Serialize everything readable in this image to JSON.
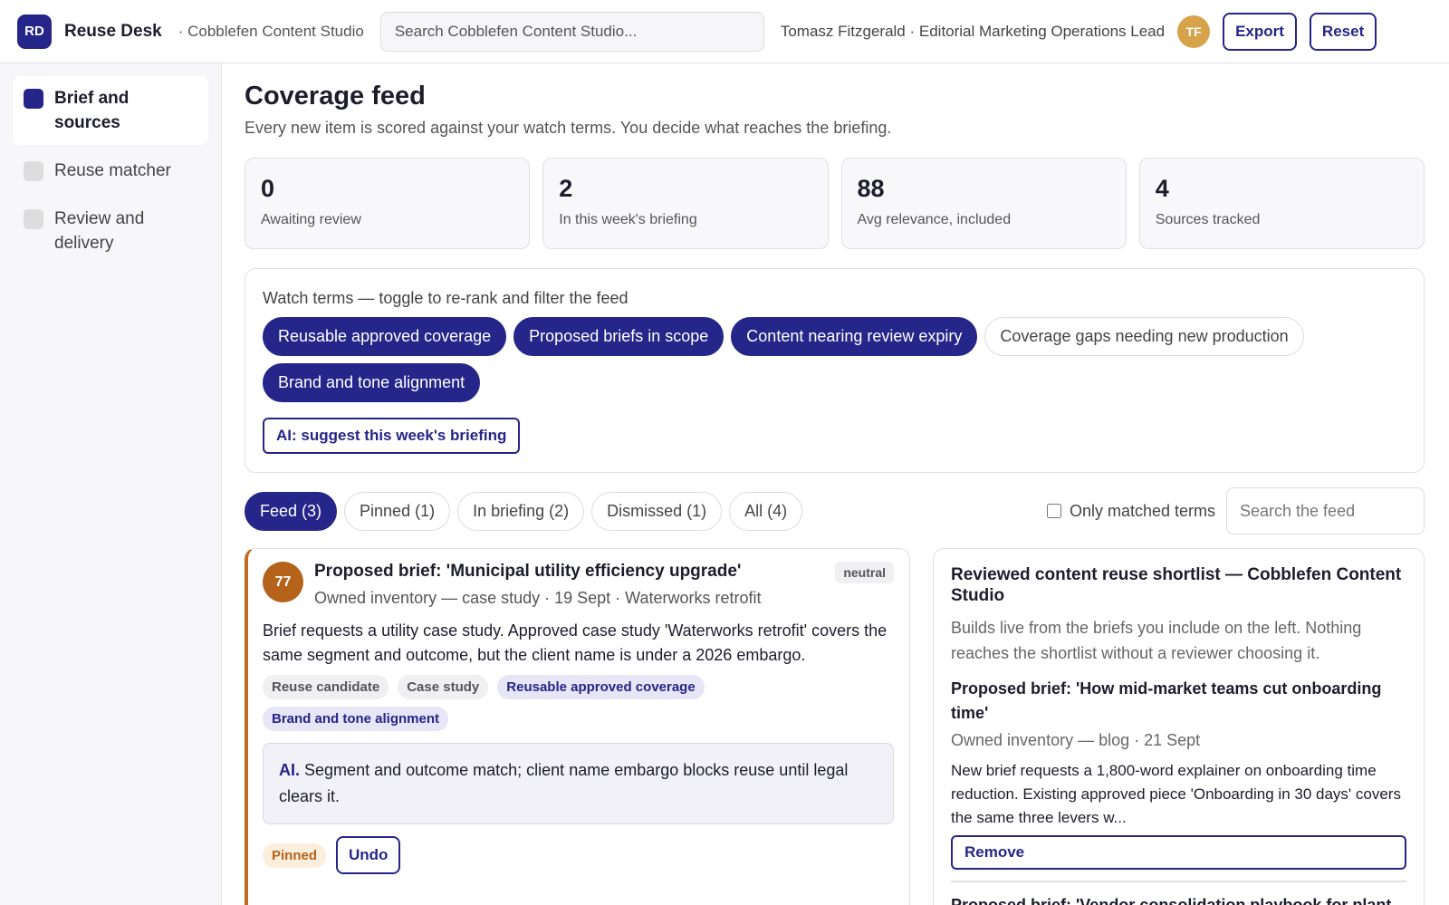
{
  "header": {
    "logo": "RD",
    "app_name": "Reuse Desk",
    "workspace": "· Cobblefen Content Studio",
    "search_placeholder": "Search Cobblefen Content Studio...",
    "user": "Tomasz Fitzgerald · Editorial Marketing Operations Lead",
    "avatar": "TF",
    "buttons": [
      "Export",
      "Reset"
    ]
  },
  "sidebar": {
    "items": [
      {
        "label": "Brief and sources",
        "active": true
      },
      {
        "label": "Reuse matcher",
        "active": false
      },
      {
        "label": "Review and delivery",
        "active": false
      }
    ]
  },
  "page": {
    "title": "Coverage feed",
    "subtitle": "Every new item is scored against your watch terms. You decide what reaches the briefing."
  },
  "stats": [
    {
      "value": 0,
      "label": "Awaiting review"
    },
    {
      "value": 2,
      "label": "In this week's briefing"
    },
    {
      "value": 88,
      "label": "Avg relevance, included"
    },
    {
      "value": 4,
      "label": "Sources tracked"
    }
  ],
  "watch": {
    "label": "Watch terms — toggle to re-rank and filter the feed",
    "terms": [
      {
        "label": "Reusable approved coverage",
        "active": true
      },
      {
        "label": "Proposed briefs in scope",
        "active": true
      },
      {
        "label": "Content nearing review expiry",
        "active": true
      },
      {
        "label": "Coverage gaps needing new production",
        "active": false
      },
      {
        "label": "Brand and tone alignment",
        "active": true
      }
    ],
    "ai_button": "AI: suggest this week's briefing"
  },
  "tabs": [
    {
      "label": "Feed (3)",
      "active": true
    },
    {
      "label": "Pinned (1)",
      "active": false
    },
    {
      "label": "In briefing (2)",
      "active": false
    },
    {
      "label": "Dismissed (1)",
      "active": false
    },
    {
      "label": "All (4)",
      "active": false
    }
  ],
  "filters": {
    "checkbox_label": "Only matched terms",
    "search_placeholder": "Search the feed"
  },
  "feed": {
    "items": [
      {
        "score": 77,
        "title": "Proposed brief: 'Municipal utility efficiency upgrade'",
        "meta": "Owned inventory — case study · 19 Sept · Waterworks retrofit",
        "sentiment": "neutral",
        "body": "Brief requests a utility case study. Approved case study 'Waterworks retrofit' covers the same segment and outcome, but the client name is under a 2026 embargo.",
        "tags": [
          {
            "label": "Reuse candidate",
            "term": false
          },
          {
            "label": "Case study",
            "term": false
          },
          {
            "label": "Reusable approved coverage",
            "term": true
          },
          {
            "label": "Brand and tone alignment",
            "term": true
          }
        ],
        "ai_label": "AI.",
        "ai_text": "Segment and outcome match; client name embargo blocks reuse until legal clears it.",
        "status": "Pinned",
        "action": "Undo"
      }
    ]
  },
  "shortlist": {
    "title": "Reviewed content reuse shortlist — Cobblefen Content Studio",
    "description": "Builds live from the briefs you include on the left. Nothing reaches the shortlist without a reviewer choosing it.",
    "items": [
      {
        "title": "Proposed brief: 'How mid-market teams cut onboarding time'",
        "meta": "Owned inventory — blog · 21 Sept",
        "body": "New brief requests a 1,800-word explainer on onboarding time reduction. Existing approved piece 'Onboarding in 30 days' covers the same three levers w...",
        "action": "Remove"
      },
      {
        "title": "Proposed brief: 'Vendor consolidation playbook for plant"
      }
    ]
  }
}
